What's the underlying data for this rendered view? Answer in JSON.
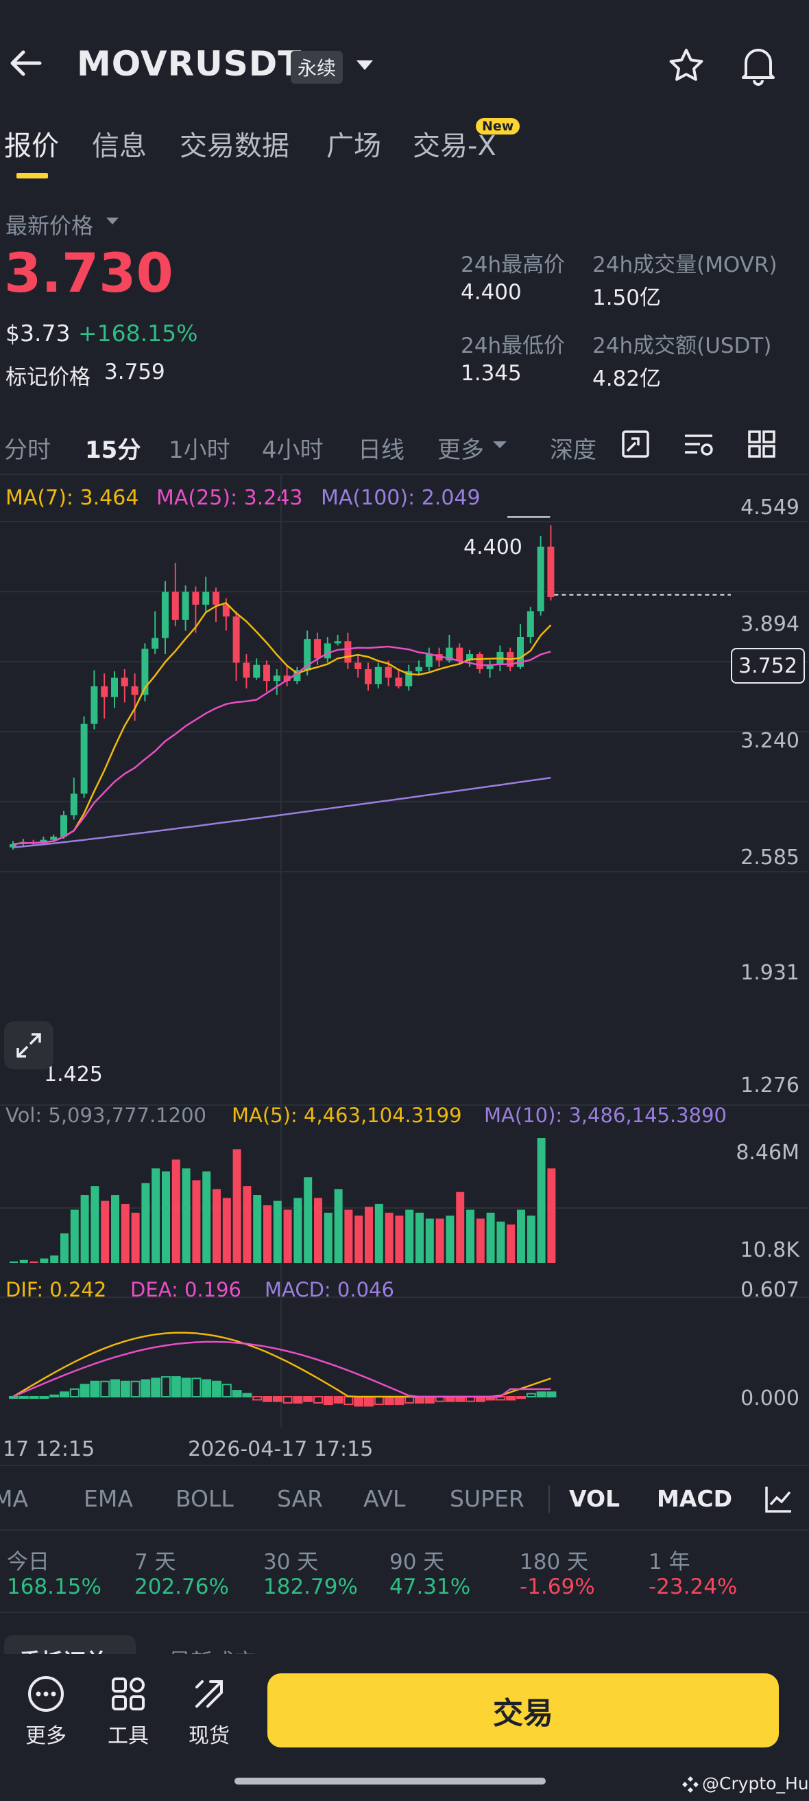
{
  "header": {
    "symbol": "MOVRUSDT",
    "contract_type": "永续"
  },
  "tabs": [
    {
      "label": "报价",
      "active": true
    },
    {
      "label": "信息"
    },
    {
      "label": "交易数据"
    },
    {
      "label": "广场"
    },
    {
      "label": "交易-X",
      "badge": "New"
    }
  ],
  "price": {
    "label": "最新价格",
    "last": "3.730",
    "usd": "$3.73",
    "change": "+168.15%",
    "mark_label": "标记价格",
    "mark_value": "3.759"
  },
  "stats": {
    "high_label": "24h最高价",
    "high_value": "4.400",
    "vol_label": "24h成交量(MOVR)",
    "vol_value": "1.50亿",
    "low_label": "24h最低价",
    "low_value": "1.345",
    "turnover_label": "24h成交额(USDT)",
    "turnover_value": "4.82亿"
  },
  "timeframes": [
    "分时",
    "15分",
    "1小时",
    "4小时",
    "日线",
    "更多",
    "深度"
  ],
  "timeframe_active": "15分",
  "ma_legend": {
    "ma7": "MA(7): 3.464",
    "ma25": "MA(25): 3.243",
    "ma100": "MA(100): 2.049"
  },
  "price_axis": [
    "4.549",
    "3.894",
    "3.240",
    "2.585",
    "1.931",
    "1.276"
  ],
  "current_price_tag": "3.752",
  "high_marker": "4.400",
  "low_marker": "1.425",
  "volume_legend": {
    "vol": "Vol: 5,093,777.1200",
    "ma5": "MA(5): 4,463,104.3199",
    "ma10": "MA(10): 3,486,145.3890"
  },
  "volume_axis": [
    "8.46M",
    "10.8K"
  ],
  "macd_legend": {
    "dif": "DIF: 0.242",
    "dea": "DEA: 0.196",
    "macd": "MACD: 0.046"
  },
  "macd_axis": [
    "0.607",
    "0.000"
  ],
  "time_axis": [
    "17 12:15",
    "2026-04-17 17:15"
  ],
  "indicators": [
    "MA",
    "EMA",
    "BOLL",
    "SAR",
    "AVL",
    "SUPER",
    "VOL",
    "MACD"
  ],
  "indicators_active": [
    "VOL",
    "MACD"
  ],
  "performance": [
    {
      "label": "今日",
      "value": "168.15%",
      "color": "#2ebd85"
    },
    {
      "label": "7 天",
      "value": "202.76%",
      "color": "#2ebd85"
    },
    {
      "label": "30 天",
      "value": "182.79%",
      "color": "#2ebd85"
    },
    {
      "label": "90 天",
      "value": "47.31%",
      "color": "#2ebd85"
    },
    {
      "label": "180 天",
      "value": "-1.69%",
      "color": "#f6465d"
    },
    {
      "label": "1 年",
      "value": "-23.24%",
      "color": "#f6465d"
    }
  ],
  "order_tabs": [
    "委托订单",
    "最新成交"
  ],
  "bottom_nav": {
    "more": "更多",
    "tools": "工具",
    "spot": "现货",
    "trade": "交易"
  },
  "watermark": "@Crypto_Hu",
  "colors": {
    "up": "#2ebd85",
    "down": "#f6465d",
    "accent": "#fcd535",
    "ma7": "#f0b90b",
    "ma25": "#e94fc7",
    "ma100": "#9b7fe0"
  }
}
